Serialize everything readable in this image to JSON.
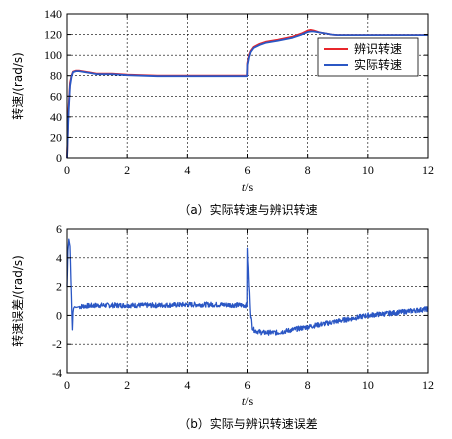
{
  "chart_data": [
    {
      "type": "line",
      "caption": "（a）实际转速与辨识转速",
      "xlabel_italic": "t",
      "xlabel_unit": "/s",
      "ylabel": "转速/(rad/s)",
      "xlim": [
        0,
        12
      ],
      "ylim": [
        0,
        140
      ],
      "xticks": [
        0,
        2,
        4,
        6,
        8,
        10,
        12
      ],
      "yticks": [
        0,
        20,
        40,
        60,
        80,
        100,
        120,
        140
      ],
      "grid": true,
      "grid_style": "dashed",
      "legend_placement": "top-right",
      "series": [
        {
          "name": "辨识转速",
          "color": "#e8262b",
          "x": [
            0,
            0.05,
            0.1,
            0.15,
            0.2,
            0.3,
            0.4,
            0.6,
            0.8,
            1.0,
            1.5,
            2.0,
            3.0,
            4.0,
            5.0,
            5.99,
            6.0,
            6.05,
            6.1,
            6.2,
            6.4,
            6.6,
            7.0,
            7.5,
            7.8,
            8.0,
            8.1,
            8.2,
            8.4,
            8.6,
            8.8,
            9.0,
            9.5,
            10,
            11,
            12
          ],
          "y": [
            0,
            48,
            73,
            80,
            84,
            85,
            85,
            84,
            83,
            82,
            82,
            81,
            80,
            80,
            80,
            80,
            92,
            100,
            104,
            108,
            111,
            113,
            115,
            118,
            121,
            124,
            124.5,
            124,
            122,
            121,
            120,
            119.5,
            119.5,
            119.5,
            119.5,
            119.5
          ]
        },
        {
          "name": "实际转速",
          "color": "#2b57c4",
          "x": [
            0,
            0.05,
            0.1,
            0.15,
            0.2,
            0.3,
            0.4,
            0.6,
            0.8,
            1.0,
            1.5,
            2.0,
            3.0,
            4.0,
            5.0,
            5.99,
            6.0,
            6.05,
            6.1,
            6.2,
            6.4,
            6.6,
            7.0,
            7.5,
            7.8,
            8.0,
            8.1,
            8.2,
            8.4,
            8.6,
            8.8,
            9.0,
            9.5,
            10,
            11,
            12
          ],
          "y": [
            0,
            43,
            70,
            79,
            83.5,
            84.5,
            84.5,
            83.5,
            82.5,
            81.5,
            81.5,
            80.5,
            79.5,
            79.5,
            79.5,
            79.5,
            90,
            98,
            103,
            107,
            110,
            112,
            114,
            117,
            120,
            122.5,
            123,
            123,
            122,
            121,
            120,
            119.5,
            119.5,
            119.5,
            119.5,
            119.5
          ]
        }
      ]
    },
    {
      "type": "line",
      "caption": "（b）实际与辨识转速误差",
      "xlabel_italic": "t",
      "xlabel_unit": "/s",
      "ylabel": "转速误差/(rad/s)",
      "xlim": [
        0,
        12
      ],
      "ylim": [
        -4,
        6
      ],
      "xticks": [
        0,
        2,
        4,
        6,
        8,
        10,
        12
      ],
      "yticks": [
        -4,
        -2,
        0,
        2,
        4,
        6
      ],
      "grid": true,
      "grid_style": "dashed",
      "series": [
        {
          "color": "#2b57c4",
          "x": [
            0,
            0.03,
            0.06,
            0.1,
            0.13,
            0.16,
            0.18,
            0.2,
            0.22,
            0.25,
            0.3,
            0.4,
            0.6,
            1.0,
            2.0,
            3.0,
            4.0,
            5.0,
            5.99,
            6.0,
            6.05,
            6.1,
            6.15,
            6.2,
            6.3,
            6.5,
            7.0,
            7.5,
            8.0,
            8.5,
            9.0,
            9.5,
            10.0,
            11.0,
            12.0
          ],
          "y": [
            2.0,
            4.5,
            5.3,
            4.8,
            2.5,
            0.3,
            -1.0,
            0.2,
            0.5,
            0.6,
            0.55,
            0.6,
            0.65,
            0.7,
            0.7,
            0.7,
            0.75,
            0.75,
            0.7,
            4.5,
            2.0,
            0.0,
            -0.8,
            -1.0,
            -1.1,
            -1.2,
            -1.2,
            -1.0,
            -0.8,
            -0.6,
            -0.4,
            -0.2,
            0.0,
            0.2,
            0.45
          ]
        }
      ]
    }
  ]
}
